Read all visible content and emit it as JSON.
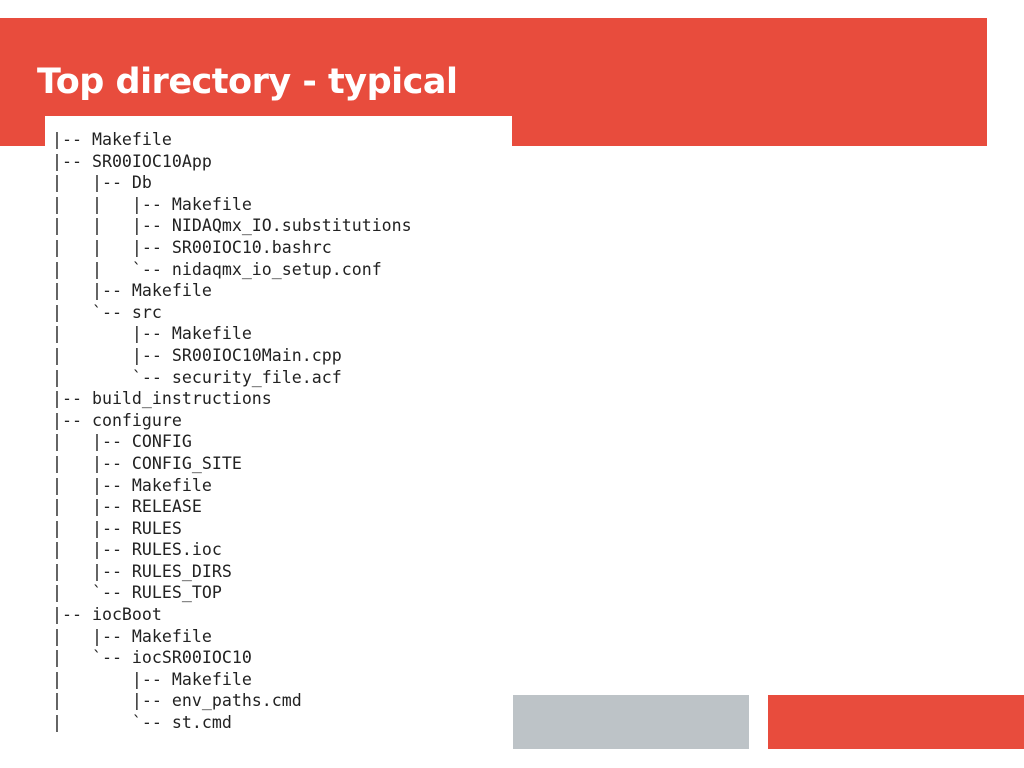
{
  "title": "Top directory - typical",
  "tree": [
    "|-- Makefile",
    "|-- SR00IOC10App",
    "|   |-- Db",
    "|   |   |-- Makefile",
    "|   |   |-- NIDAQmx_IO.substitutions",
    "|   |   |-- SR00IOC10.bashrc",
    "|   |   `-- nidaqmx_io_setup.conf",
    "|   |-- Makefile",
    "|   `-- src",
    "|       |-- Makefile",
    "|       |-- SR00IOC10Main.cpp",
    "|       `-- security_file.acf",
    "|-- build_instructions",
    "|-- configure",
    "|   |-- CONFIG",
    "|   |-- CONFIG_SITE",
    "|   |-- Makefile",
    "|   |-- RELEASE",
    "|   |-- RULES",
    "|   |-- RULES.ioc",
    "|   |-- RULES_DIRS",
    "|   `-- RULES_TOP",
    "|-- iocBoot",
    "|   |-- Makefile",
    "|   `-- iocSR00IOC10",
    "|       |-- Makefile",
    "|       |-- env_paths.cmd",
    "|       `-- st.cmd"
  ]
}
